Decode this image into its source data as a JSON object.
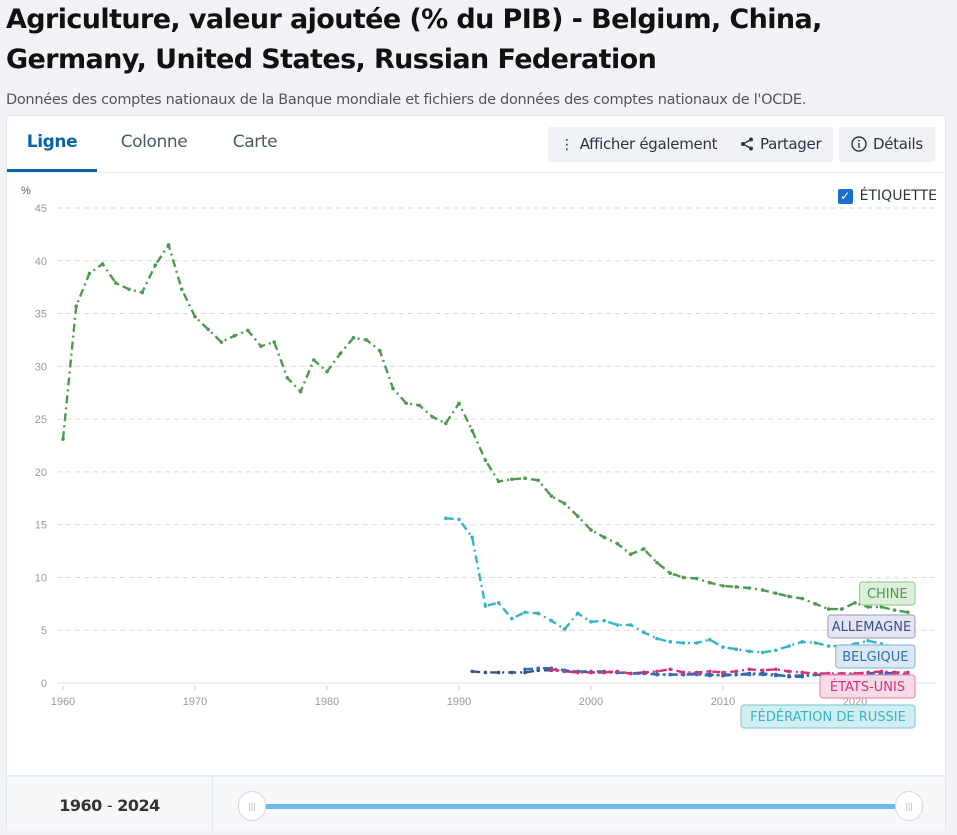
{
  "page": {
    "title": "Agriculture, valeur ajoutée (% du PIB) - Belgium, China, Germany, United States, Russian Federation",
    "subtitle": "Données des comptes nationaux de la Banque mondiale et fichiers de données des comptes nationaux de l'OCDE."
  },
  "tabs": [
    {
      "label": "Ligne",
      "active": true
    },
    {
      "label": "Colonne",
      "active": false
    },
    {
      "label": "Carte",
      "active": false
    }
  ],
  "toolbar": {
    "show_also": {
      "label": "Afficher également",
      "icon": "more-vertical-icon"
    },
    "share": {
      "label": "Partager",
      "icon": "share-icon"
    },
    "details": {
      "label": "Détails",
      "icon": "info-icon"
    }
  },
  "label_toggle": {
    "label": "ÉTIQUETTE",
    "checked": true
  },
  "range": {
    "start": "1960",
    "end": "2024",
    "separator": "-",
    "slider_start_fraction": 0,
    "slider_end_fraction": 1
  },
  "chart_data": {
    "type": "line",
    "title": "Agriculture, valeur ajoutée (% du PIB)",
    "ylabel": "%",
    "xlabel": "",
    "ylim": [
      0,
      45
    ],
    "yticks": [
      0,
      5,
      10,
      15,
      20,
      25,
      30,
      35,
      40,
      45
    ],
    "xlim": [
      1960,
      2024
    ],
    "xticks": [
      1960,
      1970,
      1980,
      1990,
      2000,
      2010,
      2020
    ],
    "grid": true,
    "legend": "inline-labels-right",
    "series": [
      {
        "name": "CHINE",
        "color": "#4e9a4e",
        "label_bg": "#dcefd9",
        "label_border": "#9fce98",
        "start_year": 1960,
        "values": [
          23.1,
          35.7,
          38.8,
          39.7,
          37.9,
          37.3,
          37.0,
          39.6,
          41.5,
          37.3,
          34.7,
          33.5,
          32.3,
          32.9,
          33.4,
          31.9,
          32.3,
          28.9,
          27.6,
          30.6,
          29.5,
          31.2,
          32.7,
          32.5,
          31.5,
          27.9,
          26.5,
          26.3,
          25.2,
          24.6,
          26.5,
          23.9,
          21.1,
          19.1,
          19.3,
          19.4,
          19.2,
          17.7,
          17.0,
          15.8,
          14.5,
          13.8,
          13.2,
          12.2,
          12.7,
          11.4,
          10.4,
          10.0,
          9.9,
          9.5,
          9.2,
          9.1,
          9.0,
          8.8,
          8.5,
          8.2,
          8.0,
          7.5,
          7.0,
          7.0,
          7.6,
          7.2,
          7.2,
          6.9,
          6.7
        ]
      },
      {
        "name": "ALLEMAGNE",
        "color": "#3d4f8f",
        "label_bg": "#e3e5f1",
        "label_border": "#a6abcb",
        "start_year": 1991,
        "values": [
          1.1,
          1.0,
          1.0,
          1.0,
          1.0,
          1.2,
          1.2,
          1.1,
          1.1,
          1.0,
          1.0,
          1.0,
          0.9,
          1.0,
          0.8,
          0.8,
          0.8,
          0.9,
          0.8,
          0.7,
          0.8,
          0.9,
          0.9,
          0.8,
          0.6,
          0.6,
          0.8,
          0.7,
          0.8,
          0.8,
          0.9,
          1.0,
          0.9,
          0.8
        ]
      },
      {
        "name": "BELGIQUE",
        "color": "#2f6fb5",
        "label_bg": "#dbe9f5",
        "label_border": "#93bde0",
        "start_year": 1995,
        "values": [
          1.3,
          1.4,
          1.4,
          1.2,
          1.1,
          1.1,
          1.1,
          1.0,
          0.9,
          0.9,
          0.8,
          0.8,
          0.8,
          0.8,
          0.7,
          0.8,
          0.8,
          0.8,
          0.8,
          0.7,
          0.7,
          0.7,
          0.8,
          0.7,
          0.7,
          0.8,
          0.9,
          0.8,
          0.9
        ]
      },
      {
        "name": "ÉTATS-UNIS",
        "color": "#d6307a",
        "label_bg": "#f7dbe7",
        "label_border": "#e592b6",
        "start_year": 1997,
        "values": [
          1.3,
          1.1,
          1.0,
          1.0,
          1.0,
          1.1,
          0.9,
          1.0,
          1.1,
          1.3,
          1.0,
          1.0,
          1.1,
          1.0,
          1.1,
          1.3,
          1.2,
          1.3,
          1.1,
          1.0,
          0.9,
          0.9,
          0.9,
          0.9,
          1.0,
          1.1,
          1.0,
          1.0
        ]
      },
      {
        "name": "FÉDÉRATION DE RUSSIE",
        "color": "#35b5c4",
        "label_bg": "#d3eef1",
        "label_border": "#88d0d9",
        "start_year": 1989,
        "values": [
          15.6,
          15.5,
          13.8,
          7.3,
          7.6,
          6.1,
          6.7,
          6.6,
          5.9,
          5.1,
          6.6,
          5.8,
          5.9,
          5.5,
          5.5,
          4.8,
          4.2,
          3.9,
          3.8,
          3.8,
          4.1,
          3.4,
          3.2,
          3.0,
          2.9,
          3.1,
          3.5,
          3.9,
          3.8,
          3.5,
          3.5,
          3.7,
          4.0,
          3.7,
          3.4,
          3.3
        ]
      }
    ]
  }
}
